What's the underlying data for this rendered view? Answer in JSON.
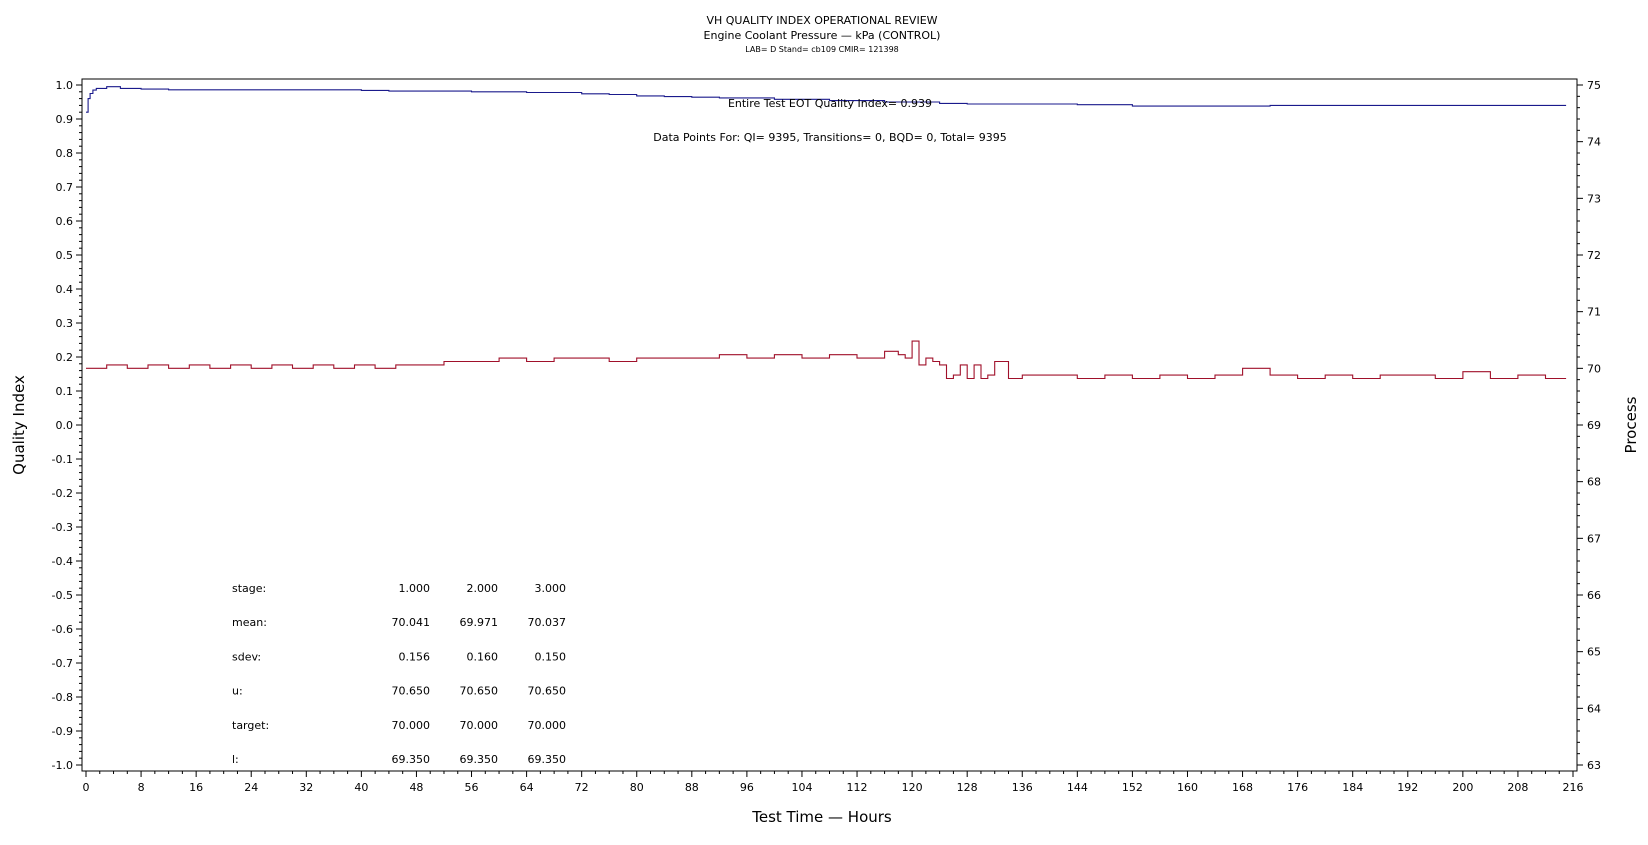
{
  "chart_data": {
    "type": "line",
    "title": "VH QUALITY INDEX OPERATIONAL REVIEW",
    "subtitle": "Engine Coolant Pressure — kPa (CONTROL)",
    "info": "LAB= D Stand= cb109 CMIR= 121398",
    "xlabel": "Test Time — Hours",
    "ylabel": "Quality Index",
    "y2label": "Process",
    "xlim": [
      0,
      216
    ],
    "ylim": [
      -1.0,
      1.0
    ],
    "y2lim": [
      63,
      75
    ],
    "xticks": [
      "0",
      "8",
      "16",
      "24",
      "32",
      "40",
      "48",
      "56",
      "64",
      "72",
      "80",
      "88",
      "96",
      "104",
      "112",
      "120",
      "128",
      "136",
      "144",
      "152",
      "160",
      "168",
      "176",
      "184",
      "192",
      "200",
      "208",
      "216"
    ],
    "yticks": [
      "-1.0",
      "-0.9",
      "-0.8",
      "-0.7",
      "-0.6",
      "-0.5",
      "-0.4",
      "-0.3",
      "-0.2",
      "-0.1",
      "0.0",
      "0.1",
      "0.2",
      "0.3",
      "0.4",
      "0.5",
      "0.6",
      "0.7",
      "0.8",
      "0.9",
      "1.0"
    ],
    "y2ticks": [
      "63",
      "64",
      "65",
      "66",
      "67",
      "68",
      "69",
      "70",
      "71",
      "72",
      "73",
      "74",
      "75"
    ],
    "annotation_qi": "Entire Test EOT Quality Index=   0.939",
    "annotation_points": "Data Points For: QI=  9395, Transitions=     0, BQD=     0, Total=  9395",
    "series": [
      {
        "color": "#1a1a8c",
        "axis": "left",
        "x": [
          0,
          0.3,
          0.6,
          1,
          1.5,
          2,
          3,
          4,
          5,
          6,
          8,
          10,
          12,
          16,
          20,
          30,
          40,
          44,
          48,
          56,
          64,
          72,
          76,
          80,
          84,
          88,
          92,
          100,
          108,
          116,
          124,
          128,
          136,
          144,
          152,
          160,
          168,
          172,
          180,
          190,
          200,
          210,
          215
        ],
        "values": [
          0.92,
          0.96,
          0.975,
          0.985,
          0.99,
          0.99,
          0.995,
          0.995,
          0.99,
          0.99,
          0.988,
          0.988,
          0.986,
          0.986,
          0.986,
          0.986,
          0.984,
          0.982,
          0.982,
          0.98,
          0.978,
          0.974,
          0.972,
          0.968,
          0.966,
          0.964,
          0.962,
          0.958,
          0.954,
          0.95,
          0.946,
          0.944,
          0.944,
          0.942,
          0.938,
          0.938,
          0.938,
          0.94,
          0.94,
          0.94,
          0.94,
          0.94,
          0.94
        ]
      },
      {
        "color": "#a0102a",
        "axis": "right",
        "x": [
          0,
          1,
          3,
          6,
          9,
          12,
          15,
          18,
          21,
          24,
          27,
          30,
          33,
          36,
          39,
          42,
          45,
          48,
          52,
          56,
          60,
          64,
          68,
          72,
          76,
          80,
          84,
          88,
          92,
          96,
          100,
          104,
          108,
          112,
          116,
          118,
          119,
          120,
          121,
          122,
          123,
          124,
          125,
          126,
          127,
          128,
          129,
          130,
          131,
          132,
          134,
          136,
          140,
          144,
          148,
          152,
          156,
          160,
          164,
          168,
          172,
          176,
          180,
          184,
          188,
          192,
          196,
          200,
          204,
          208,
          212,
          215
        ],
        "values": [
          70.0,
          70.0,
          70.06,
          70.0,
          70.06,
          70.0,
          70.06,
          70.0,
          70.06,
          70.0,
          70.06,
          70.0,
          70.06,
          70.0,
          70.06,
          70.0,
          70.06,
          70.06,
          70.12,
          70.12,
          70.18,
          70.12,
          70.18,
          70.18,
          70.12,
          70.18,
          70.18,
          70.18,
          70.24,
          70.18,
          70.24,
          70.18,
          70.24,
          70.18,
          70.3,
          70.24,
          70.18,
          70.48,
          70.06,
          70.18,
          70.12,
          70.06,
          69.82,
          69.88,
          70.06,
          69.82,
          70.06,
          69.82,
          69.88,
          70.12,
          69.82,
          69.88,
          69.88,
          69.82,
          69.88,
          69.82,
          69.88,
          69.82,
          69.88,
          70.0,
          69.88,
          69.82,
          69.88,
          69.82,
          69.88,
          69.88,
          69.82,
          69.94,
          69.82,
          69.88,
          69.82,
          69.82
        ]
      }
    ],
    "stats_table": {
      "labels": [
        "stage:",
        "mean:",
        "sdev:",
        "u:",
        "target:",
        "l:"
      ],
      "rows": [
        [
          "1.000",
          "2.000",
          "3.000"
        ],
        [
          "70.041",
          "69.971",
          "70.037"
        ],
        [
          "0.156",
          "0.160",
          "0.150"
        ],
        [
          "70.650",
          "70.650",
          "70.650"
        ],
        [
          "70.000",
          "70.000",
          "70.000"
        ],
        [
          "69.350",
          "69.350",
          "69.350"
        ]
      ]
    },
    "grid": false,
    "legend": "none"
  }
}
